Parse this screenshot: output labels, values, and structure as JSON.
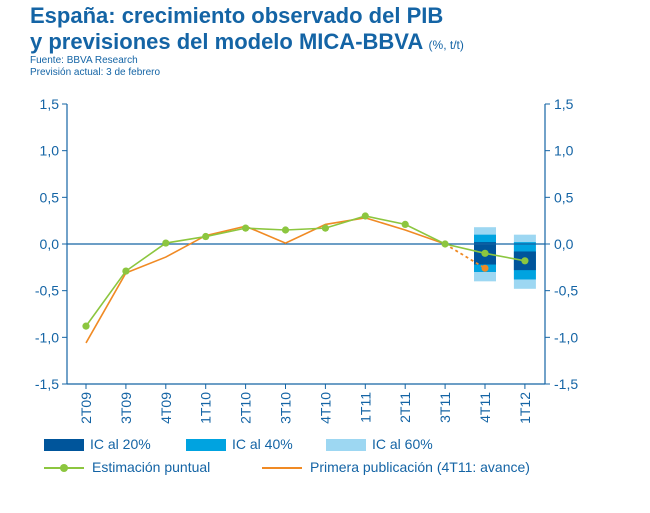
{
  "title_line1": "España: crecimiento observado del PIB",
  "title_line2": "y previsiones del modelo MICA-BBVA",
  "title_unit": "(%, t/t)",
  "source": "Fuente: BBVA Research",
  "forecast_note": "Previsión actual: 3 de febrero",
  "chart_data": {
    "type": "line",
    "categories": [
      "2T09",
      "3T09",
      "4T09",
      "1T10",
      "2T10",
      "3T10",
      "4T10",
      "1T11",
      "2T11",
      "3T11",
      "4T11",
      "1T12"
    ],
    "ylim": [
      -1.5,
      1.5
    ],
    "yticks": [
      "1,5",
      "1,0",
      "0,5",
      "0,0",
      "-0,5",
      "-1,0",
      "-1,5"
    ],
    "ytick_values": [
      1.5,
      1.0,
      0.5,
      0.0,
      -0.5,
      -1.0,
      -1.5
    ],
    "grid": false,
    "series": [
      {
        "name": "Estimación puntual",
        "color": "#8cc63f",
        "values": [
          -0.88,
          -0.29,
          0.01,
          0.08,
          0.17,
          0.15,
          0.17,
          0.3,
          0.21,
          0.0,
          -0.1,
          -0.18
        ]
      },
      {
        "name": "Primera publicación (4T11: avance)",
        "color": "#f08a24",
        "values": [
          -1.06,
          -0.31,
          -0.14,
          0.09,
          0.19,
          0.01,
          0.21,
          0.28,
          0.15,
          0.0,
          -0.26,
          null
        ]
      }
    ],
    "intervals": [
      {
        "category": "4T11",
        "ic20": [
          -0.22,
          0.02
        ],
        "ic40": [
          -0.3,
          0.1
        ],
        "ic60": [
          -0.4,
          0.18
        ]
      },
      {
        "category": "1T12",
        "ic20": [
          -0.28,
          -0.08
        ],
        "ic40": [
          -0.38,
          0.02
        ],
        "ic60": [
          -0.48,
          0.1
        ]
      }
    ],
    "legend": [
      {
        "label": "IC al 20%",
        "color": "#00559b",
        "kind": "box"
      },
      {
        "label": "IC al 40%",
        "color": "#00a3e0",
        "kind": "box"
      },
      {
        "label": "IC al 60%",
        "color": "#9dd7f2",
        "kind": "box"
      },
      {
        "label": "Estimación puntual",
        "color": "#8cc63f",
        "kind": "line-dot"
      },
      {
        "label": "Primera publicación (4T11: avance)",
        "color": "#f08a24",
        "kind": "line"
      }
    ],
    "legend_position": "bottom",
    "axis_color": "#1464a5"
  }
}
